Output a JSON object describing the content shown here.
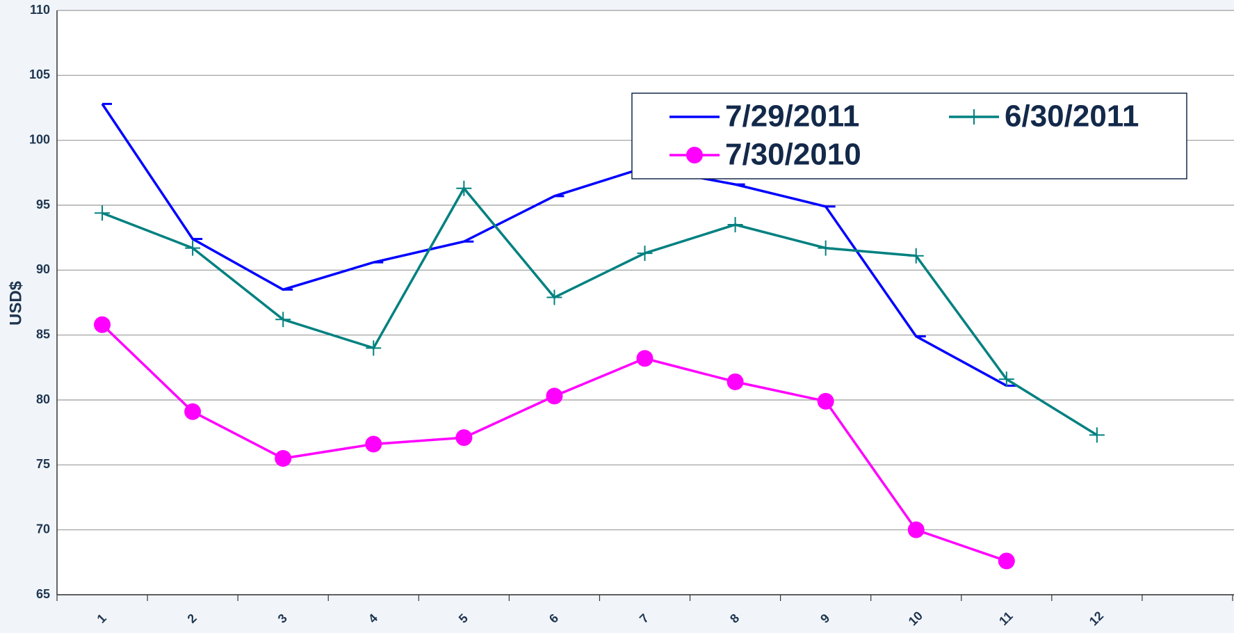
{
  "chart_data": {
    "type": "line",
    "y_label": "USD$",
    "categories": [
      "1",
      "2",
      "3",
      "4",
      "5",
      "6",
      "7",
      "8",
      "9",
      "10",
      "11",
      "12",
      null
    ],
    "series": [
      {
        "name": "7/29/2011",
        "color": "#0000ff",
        "marker": "dash",
        "values": [
          102.8,
          92.4,
          88.5,
          90.6,
          92.2,
          95.7,
          97.9,
          96.6,
          94.9,
          84.9,
          81.1,
          null,
          null
        ]
      },
      {
        "name": "6/30/2011",
        "color": "#008080",
        "marker": "plus",
        "values": [
          94.4,
          91.7,
          86.2,
          84.0,
          96.3,
          87.9,
          91.3,
          93.5,
          91.7,
          91.1,
          81.6,
          77.3,
          null
        ]
      },
      {
        "name": "7/30/2010",
        "color": "#ff00ff",
        "marker": "circle",
        "values": [
          85.8,
          79.1,
          75.5,
          76.6,
          77.1,
          80.3,
          83.2,
          81.4,
          79.9,
          70.0,
          67.6,
          null,
          null
        ]
      }
    ],
    "ylim": [
      65,
      110
    ],
    "yticks": [
      65,
      70,
      75,
      80,
      85,
      90,
      95,
      100,
      105,
      110
    ],
    "grid": true,
    "legend": "upper right"
  }
}
